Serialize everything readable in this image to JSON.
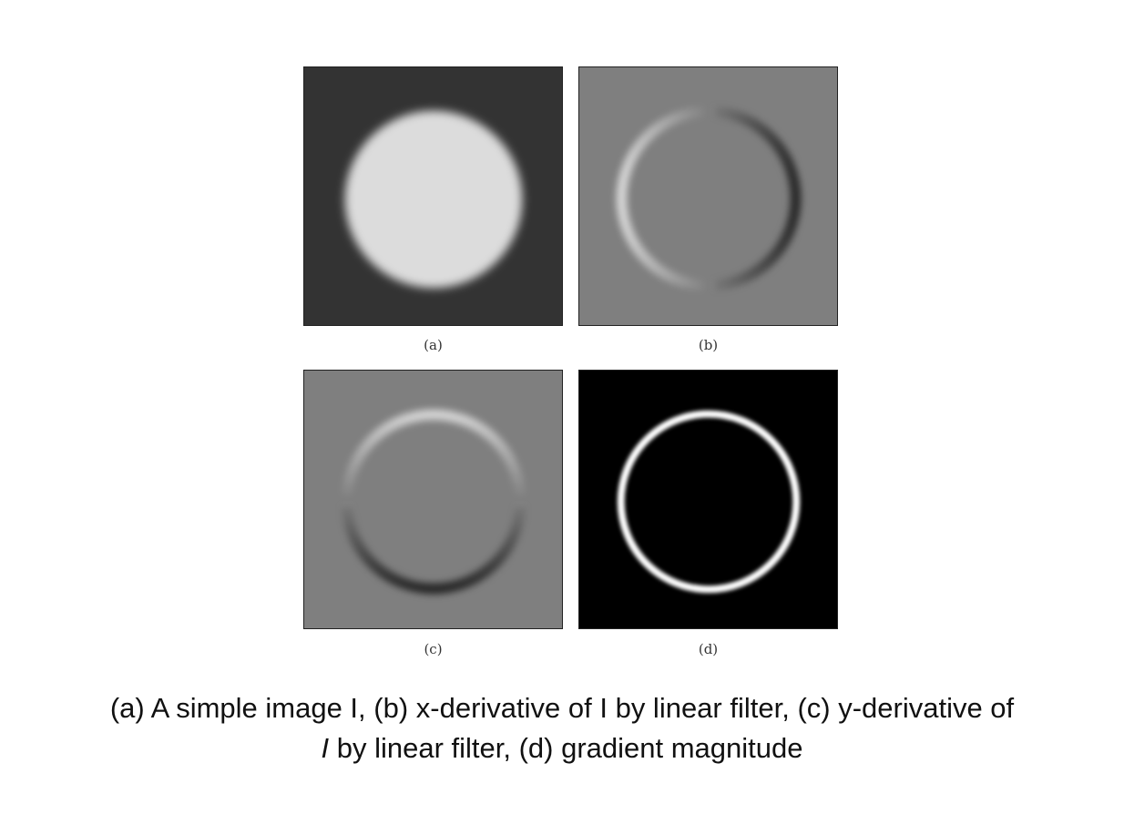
{
  "figure": {
    "panels": [
      {
        "id": "a",
        "label": "(a)"
      },
      {
        "id": "b",
        "label": "(b)"
      },
      {
        "id": "c",
        "label": "(c)"
      },
      {
        "id": "d",
        "label": "(d)"
      }
    ],
    "caption": {
      "line1": "(a) A simple image I, (b) x-derivative of I by linear filter, (c) y-derivative of",
      "line2_italic": "I",
      "line2_rest": " by linear filter, (d) gradient magnitude"
    }
  },
  "colors": {
    "panel_a_background": "#333333",
    "panel_a_disk": "#dcdcdc",
    "derivative_background": "#7f7f7f",
    "magnitude_background": "#000000",
    "highlight": "#ffffff",
    "shadow": "#000000"
  }
}
